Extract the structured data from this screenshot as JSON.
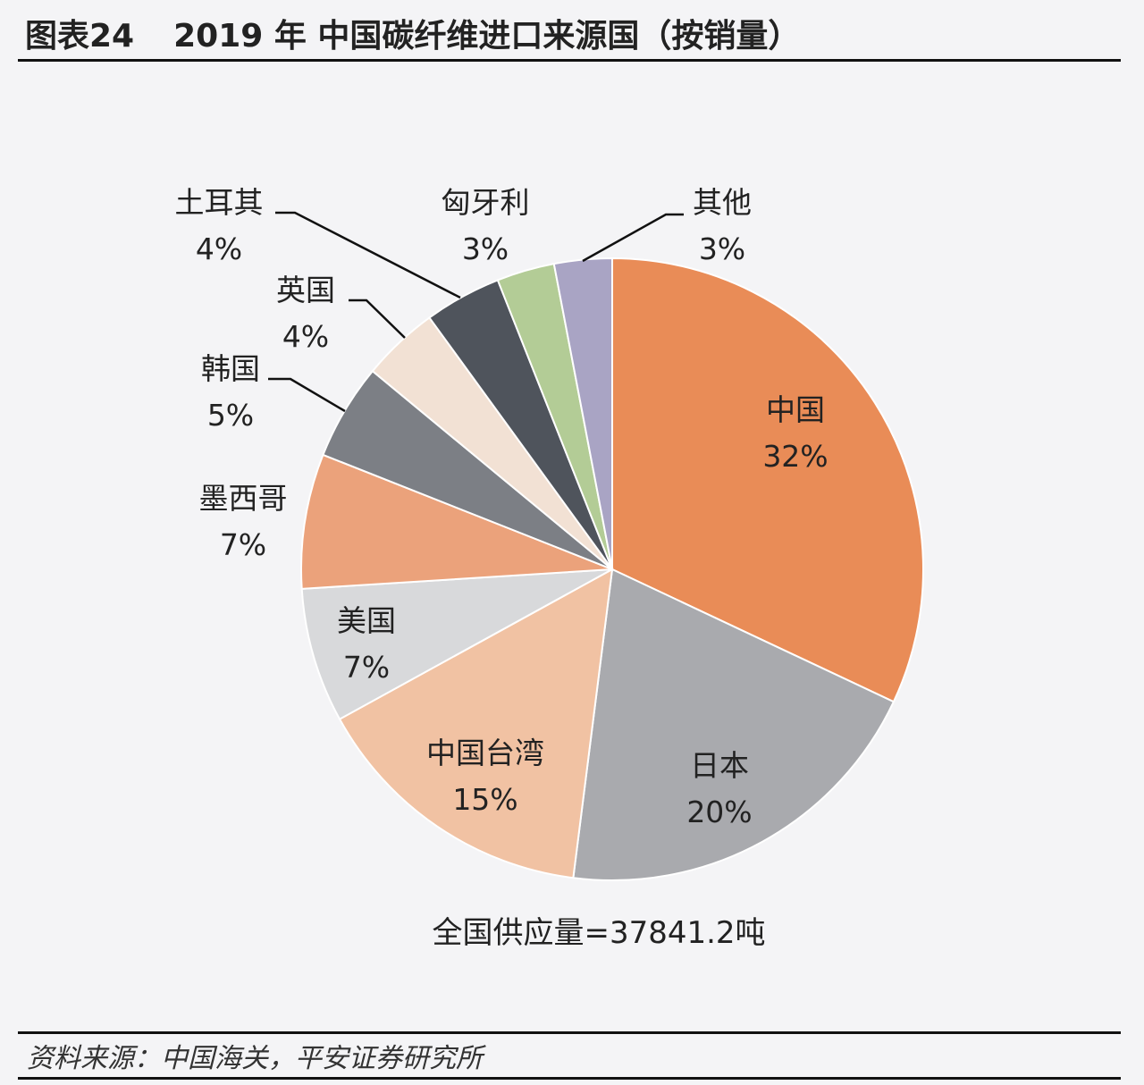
{
  "header": {
    "figure_label": "图表24",
    "title": "2019 年 中国碳纤维进口来源国（按销量）"
  },
  "chart_data": {
    "type": "pie",
    "start_angle_deg": 0,
    "direction": "clockwise",
    "slices": [
      {
        "label": "中国",
        "percent_label": "32%",
        "value": 32,
        "color": "#e98c57"
      },
      {
        "label": "日本",
        "percent_label": "20%",
        "value": 20,
        "color": "#a9aaae"
      },
      {
        "label": "中国台湾",
        "percent_label": "15%",
        "value": 15,
        "color": "#f1c2a3"
      },
      {
        "label": "美国",
        "percent_label": "7%",
        "value": 7,
        "color": "#d8d9db"
      },
      {
        "label": "墨西哥",
        "percent_label": "7%",
        "value": 7,
        "color": "#eba27b"
      },
      {
        "label": "韩国",
        "percent_label": "5%",
        "value": 5,
        "color": "#7c7f85"
      },
      {
        "label": "英国",
        "percent_label": "4%",
        "value": 4,
        "color": "#f2e1d4"
      },
      {
        "label": "土耳其",
        "percent_label": "4%",
        "value": 4,
        "color": "#4f545c"
      },
      {
        "label": "匈牙利",
        "percent_label": "3%",
        "value": 3,
        "color": "#b3cc96"
      },
      {
        "label": "其他",
        "percent_label": "3%",
        "value": 3,
        "color": "#a9a4c4"
      }
    ],
    "total_note": "全国供应量=37841.2吨"
  },
  "footer": {
    "source": "资料来源：中国海关，平安证券研究所"
  }
}
